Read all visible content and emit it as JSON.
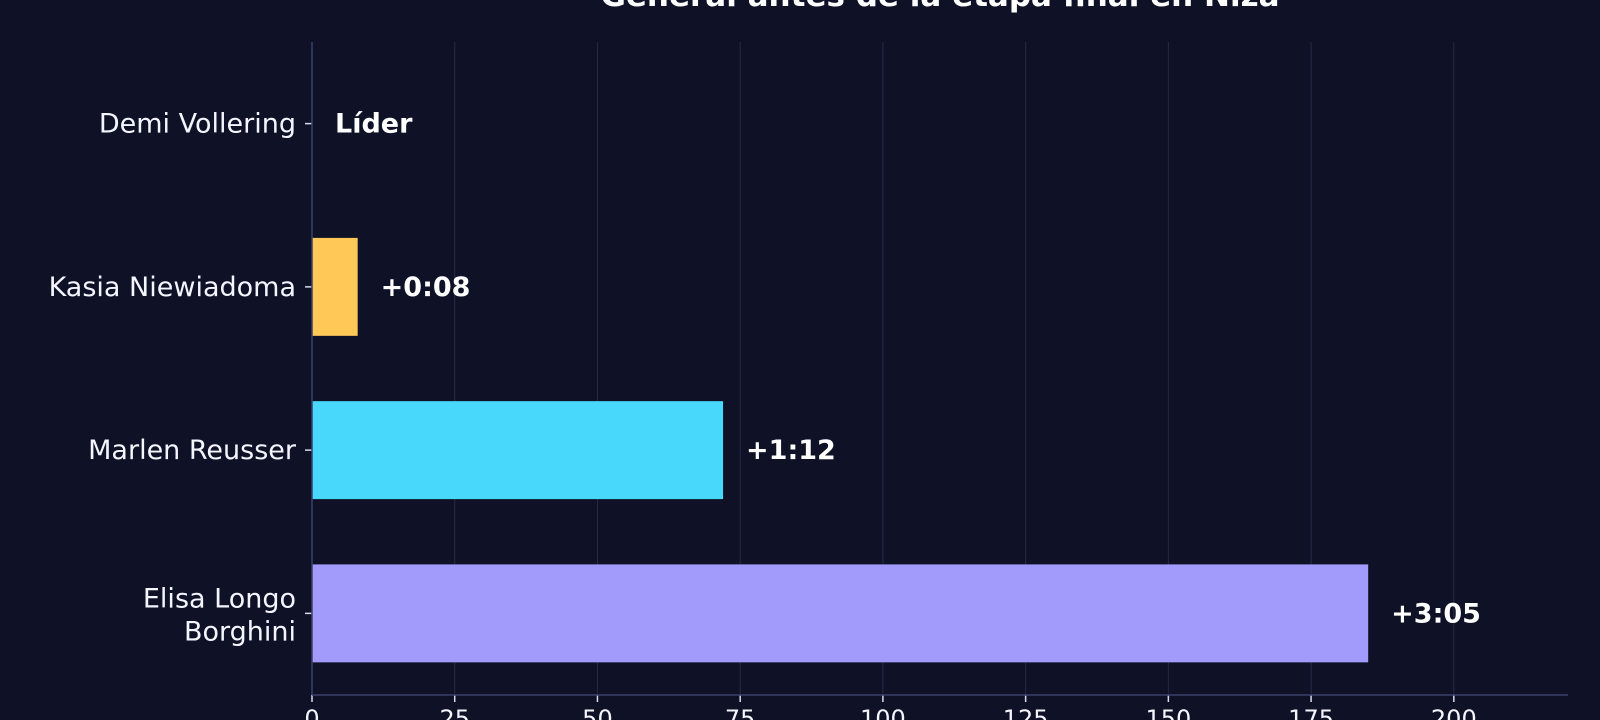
{
  "chart_data": {
    "type": "bar",
    "orientation": "horizontal",
    "title": "General antes de la etapa final en Niza",
    "xlabel": "",
    "ylabel": "",
    "categories": [
      "Demi Vollering",
      "Kasia Niewiadoma",
      "Marlen Reusser",
      "Elisa Longo Borghini"
    ],
    "values": [
      0,
      8,
      72,
      185
    ],
    "value_labels": [
      "Líder",
      "+0:08",
      "+1:12",
      "+3:05"
    ],
    "bar_colors": [
      "#ffd166",
      "#ffc857",
      "#48d8fb",
      "#a29bfc"
    ],
    "xlim": [
      0,
      220
    ],
    "xticks": [
      0,
      25,
      50,
      75,
      100,
      125,
      150,
      175,
      200
    ],
    "grid": "vertical",
    "colors": {
      "background": "#0f1226",
      "axis": "#3a3f6a",
      "grid": "#262a48",
      "text": "#ffffff"
    }
  }
}
